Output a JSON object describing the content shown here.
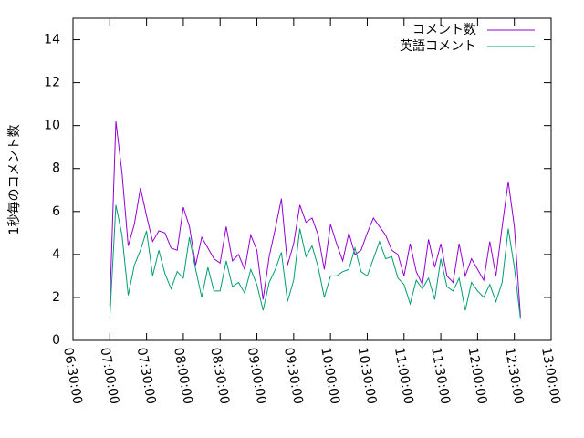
{
  "chart_data": {
    "type": "line",
    "ylabel": "1秒毎のコメント数",
    "x": [
      "07:00:00",
      "07:05:00",
      "07:10:00",
      "07:15:00",
      "07:20:00",
      "07:25:00",
      "07:30:00",
      "07:35:00",
      "07:40:00",
      "07:45:00",
      "07:50:00",
      "07:55:00",
      "08:00:00",
      "08:05:00",
      "08:10:00",
      "08:15:00",
      "08:20:00",
      "08:25:00",
      "08:30:00",
      "08:35:00",
      "08:40:00",
      "08:45:00",
      "08:50:00",
      "08:55:00",
      "09:00:00",
      "09:05:00",
      "09:10:00",
      "09:15:00",
      "09:20:00",
      "09:25:00",
      "09:30:00",
      "09:35:00",
      "09:40:00",
      "09:45:00",
      "09:50:00",
      "09:55:00",
      "10:00:00",
      "10:05:00",
      "10:10:00",
      "10:15:00",
      "10:20:00",
      "10:25:00",
      "10:30:00",
      "10:35:00",
      "10:40:00",
      "10:45:00",
      "10:50:00",
      "10:55:00",
      "11:00:00",
      "11:05:00",
      "11:10:00",
      "11:15:00",
      "11:20:00",
      "11:25:00",
      "11:30:00",
      "11:35:00",
      "11:40:00",
      "11:45:00",
      "11:50:00",
      "11:55:00",
      "12:00:00",
      "12:05:00",
      "12:10:00",
      "12:15:00",
      "12:20:00",
      "12:25:00",
      "12:30:00",
      "12:35:00"
    ],
    "series": [
      {
        "name": "コメント数",
        "color": "#9400d3",
        "values": [
          1.6,
          10.2,
          7.8,
          4.4,
          5.4,
          7.1,
          5.8,
          4.6,
          5.1,
          5.0,
          4.3,
          4.2,
          6.2,
          5.3,
          3.5,
          4.8,
          4.3,
          3.8,
          3.6,
          5.3,
          3.7,
          4.0,
          3.3,
          4.9,
          4.2,
          1.9,
          3.9,
          5.2,
          6.6,
          3.5,
          4.5,
          6.3,
          5.5,
          5.7,
          4.9,
          3.3,
          5.4,
          4.5,
          3.7,
          5.0,
          4.0,
          4.2,
          5.0,
          5.7,
          5.3,
          4.9,
          4.2,
          4.0,
          3.0,
          4.5,
          3.2,
          2.6,
          4.7,
          3.4,
          4.5,
          3.0,
          2.7,
          4.5,
          3.0,
          3.8,
          3.3,
          2.8,
          4.6,
          3.0,
          5.3,
          7.4,
          5.3,
          1.1
        ]
      },
      {
        "name": "英語コメント",
        "color": "#009e73",
        "values": [
          1.0,
          6.3,
          4.9,
          2.1,
          3.5,
          4.2,
          5.1,
          3.0,
          4.2,
          3.1,
          2.4,
          3.2,
          2.9,
          4.8,
          3.3,
          2.0,
          3.4,
          2.3,
          2.3,
          3.7,
          2.5,
          2.7,
          2.2,
          3.3,
          2.6,
          1.4,
          2.7,
          3.3,
          4.1,
          1.8,
          2.8,
          5.2,
          3.9,
          4.4,
          3.4,
          2.0,
          3.0,
          3.0,
          3.2,
          3.3,
          4.3,
          3.2,
          3.0,
          3.8,
          4.6,
          3.8,
          3.9,
          2.9,
          2.6,
          1.7,
          2.8,
          2.4,
          2.9,
          1.9,
          3.8,
          2.5,
          2.3,
          2.9,
          1.4,
          2.7,
          2.3,
          2.0,
          2.6,
          1.8,
          2.7,
          5.2,
          3.4,
          1.0
        ]
      }
    ],
    "xlim": [
      "06:30:00",
      "13:00:00"
    ],
    "xticks": [
      "06:30:00",
      "07:00:00",
      "07:30:00",
      "08:00:00",
      "08:30:00",
      "09:00:00",
      "09:30:00",
      "10:00:00",
      "10:30:00",
      "11:00:00",
      "11:30:00",
      "12:00:00",
      "12:30:00",
      "13:00:00"
    ],
    "ylim": [
      0,
      15
    ],
    "yticks": [
      0,
      2,
      4,
      6,
      8,
      10,
      12,
      14
    ],
    "legend": "top-right"
  }
}
